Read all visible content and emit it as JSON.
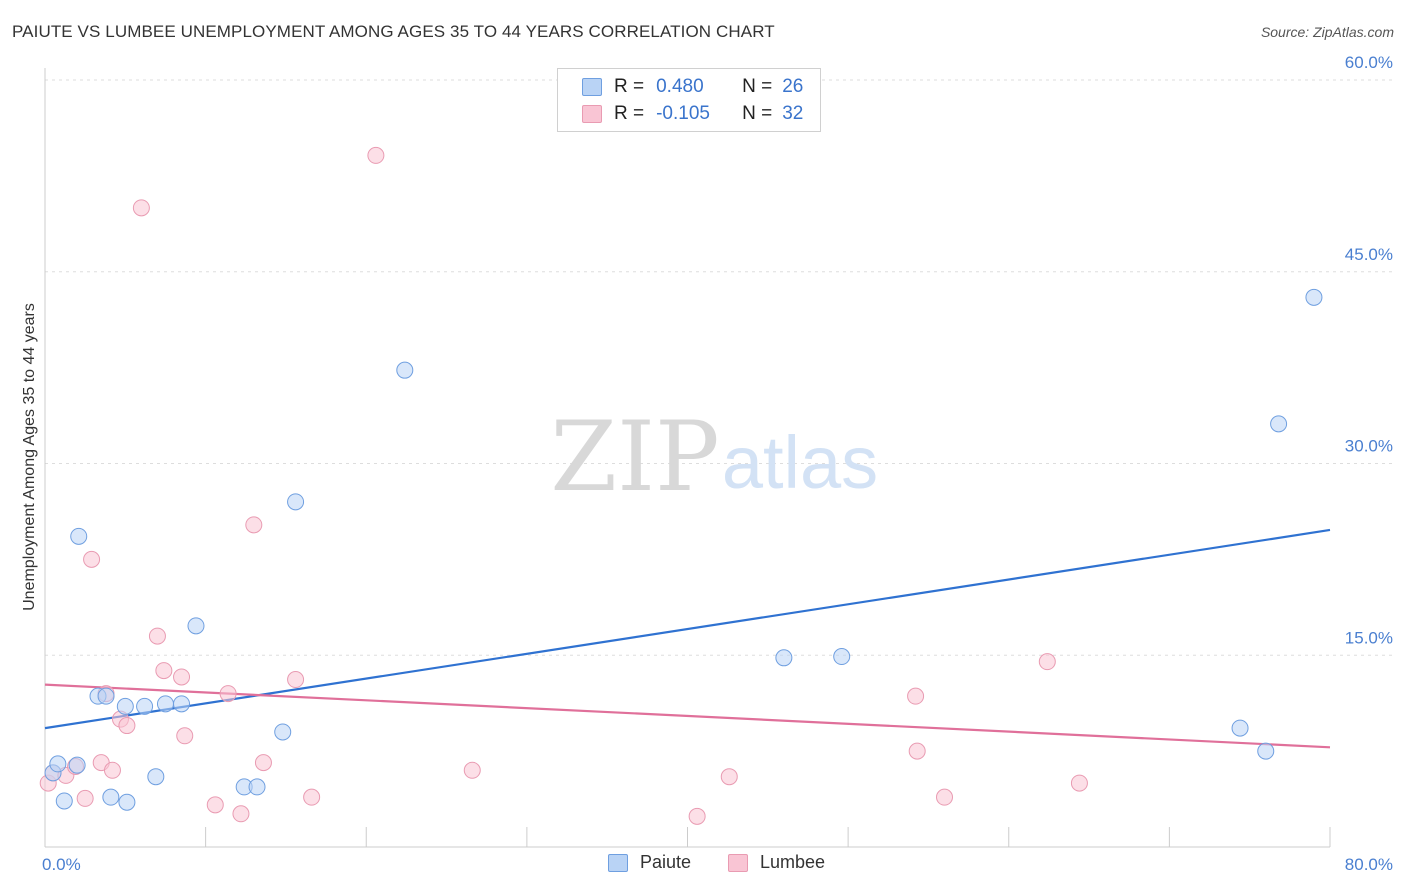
{
  "title": "PAIUTE VS LUMBEE UNEMPLOYMENT AMONG AGES 35 TO 44 YEARS CORRELATION CHART",
  "source": "Source: ZipAtlas.com",
  "watermark": {
    "zip": "ZIP",
    "atlas": "atlas"
  },
  "stats": {
    "r_label": "R =",
    "n_label": "N =",
    "paiute": {
      "r": "0.480",
      "n": "26"
    },
    "lumbee": {
      "r": "-0.105",
      "n": "32"
    }
  },
  "legend": {
    "paiute": "Paiute",
    "lumbee": "Lumbee"
  },
  "colors": {
    "paiute_fill": "#b9d3f5",
    "paiute_stroke": "#6f9fe0",
    "paiute_line": "#2f72d1",
    "lumbee_fill": "#f9c5d4",
    "lumbee_stroke": "#e99bb2",
    "lumbee_line": "#e0709a",
    "tick_text": "#4a7fd0"
  },
  "chart_data": {
    "type": "scatter",
    "title": "PAIUTE VS LUMBEE UNEMPLOYMENT AMONG AGES 35 TO 44 YEARS CORRELATION CHART",
    "xlabel": "",
    "ylabel": "Unemployment Among Ages 35 to 44 years",
    "xlim": [
      0,
      80
    ],
    "ylim": [
      0,
      60
    ],
    "x_tick_labels": [
      {
        "value": 0,
        "label": "0.0%"
      },
      {
        "value": 80,
        "label": "80.0%"
      }
    ],
    "y_tick_labels": [
      {
        "value": 15,
        "label": "15.0%"
      },
      {
        "value": 30,
        "label": "30.0%"
      },
      {
        "value": 45,
        "label": "45.0%"
      },
      {
        "value": 60,
        "label": "60.0%"
      }
    ],
    "grid": true,
    "legend_position": "bottom-center",
    "series": [
      {
        "name": "Paiute",
        "points": [
          [
            0.5,
            5.8
          ],
          [
            0.8,
            6.5
          ],
          [
            1.2,
            3.6
          ],
          [
            2.0,
            6.4
          ],
          [
            2.1,
            24.3
          ],
          [
            3.3,
            11.8
          ],
          [
            3.8,
            11.8
          ],
          [
            4.1,
            3.9
          ],
          [
            5.0,
            11.0
          ],
          [
            5.1,
            3.5
          ],
          [
            6.2,
            11.0
          ],
          [
            6.9,
            5.5
          ],
          [
            7.5,
            11.2
          ],
          [
            8.5,
            11.2
          ],
          [
            9.4,
            17.3
          ],
          [
            12.4,
            4.7
          ],
          [
            13.2,
            4.7
          ],
          [
            14.8,
            9.0
          ],
          [
            15.6,
            27.0
          ],
          [
            22.4,
            37.3
          ],
          [
            46.0,
            14.8
          ],
          [
            49.6,
            14.9
          ],
          [
            74.4,
            9.3
          ],
          [
            76.0,
            7.5
          ],
          [
            76.8,
            33.1
          ],
          [
            79.0,
            43.0
          ]
        ]
      },
      {
        "name": "Lumbee",
        "points": [
          [
            0.2,
            5.0
          ],
          [
            0.5,
            5.8
          ],
          [
            1.3,
            5.6
          ],
          [
            1.9,
            6.3
          ],
          [
            2.5,
            3.8
          ],
          [
            2.9,
            22.5
          ],
          [
            3.5,
            6.6
          ],
          [
            3.8,
            12.0
          ],
          [
            4.2,
            6.0
          ],
          [
            4.7,
            10.0
          ],
          [
            5.1,
            9.5
          ],
          [
            6.0,
            50.0
          ],
          [
            7.0,
            16.5
          ],
          [
            7.4,
            13.8
          ],
          [
            8.5,
            13.3
          ],
          [
            8.7,
            8.7
          ],
          [
            10.6,
            3.3
          ],
          [
            11.4,
            12.0
          ],
          [
            12.2,
            2.6
          ],
          [
            13.0,
            25.2
          ],
          [
            13.6,
            6.6
          ],
          [
            15.6,
            13.1
          ],
          [
            16.6,
            3.9
          ],
          [
            20.6,
            54.1
          ],
          [
            26.6,
            6.0
          ],
          [
            40.6,
            2.4
          ],
          [
            42.6,
            5.5
          ],
          [
            54.2,
            11.8
          ],
          [
            54.3,
            7.5
          ],
          [
            56.0,
            3.9
          ],
          [
            62.4,
            14.5
          ],
          [
            64.4,
            5.0
          ]
        ]
      }
    ],
    "trend_lines": [
      {
        "name": "Paiute",
        "x": [
          0,
          80
        ],
        "y": [
          9.3,
          24.8
        ]
      },
      {
        "name": "Lumbee",
        "x": [
          0,
          80
        ],
        "y": [
          12.7,
          7.8
        ]
      }
    ]
  }
}
